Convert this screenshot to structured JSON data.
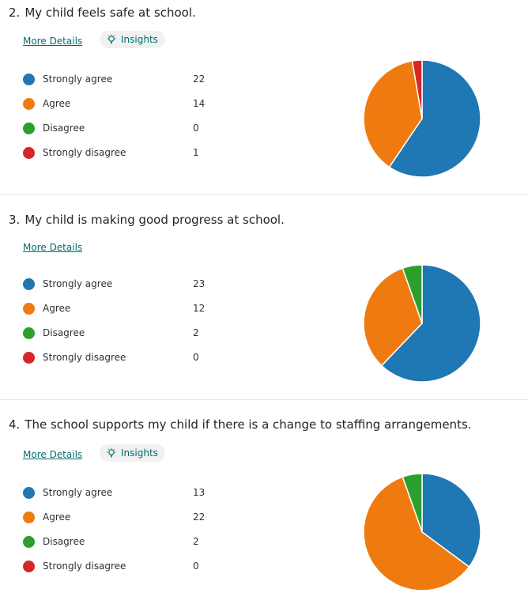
{
  "colors": {
    "strongly_agree": "#1f77b4",
    "agree": "#ef7b10",
    "disagree": "#2ca02c",
    "strongly_disagree": "#d62728"
  },
  "questions": [
    {
      "number": "2.",
      "title": "My child feels safe at school.",
      "more_details": "More Details",
      "insights": "Insights",
      "has_insights": true,
      "options": [
        {
          "label": "Strongly agree",
          "count": "22"
        },
        {
          "label": "Agree",
          "count": "14"
        },
        {
          "label": "Disagree",
          "count": "0"
        },
        {
          "label": "Strongly disagree",
          "count": "1"
        }
      ]
    },
    {
      "number": "3.",
      "title": "My child is making good progress at school.",
      "more_details": "More Details",
      "insights": "",
      "has_insights": false,
      "options": [
        {
          "label": "Strongly agree",
          "count": "23"
        },
        {
          "label": "Agree",
          "count": "12"
        },
        {
          "label": "Disagree",
          "count": "2"
        },
        {
          "label": "Strongly disagree",
          "count": "0"
        }
      ]
    },
    {
      "number": "4.",
      "title": "The school supports my child if there is a change to staffing arrangements.",
      "more_details": "More Details",
      "insights": "Insights",
      "has_insights": true,
      "options": [
        {
          "label": "Strongly agree",
          "count": "13"
        },
        {
          "label": "Agree",
          "count": "22"
        },
        {
          "label": "Disagree",
          "count": "2"
        },
        {
          "label": "Strongly disagree",
          "count": "0"
        }
      ]
    }
  ],
  "chart_data": [
    {
      "type": "pie",
      "categories": [
        "Strongly agree",
        "Agree",
        "Disagree",
        "Strongly disagree"
      ],
      "values": [
        22,
        14,
        0,
        1
      ],
      "legend": "left"
    },
    {
      "type": "pie",
      "categories": [
        "Strongly agree",
        "Agree",
        "Disagree",
        "Strongly disagree"
      ],
      "values": [
        23,
        12,
        2,
        0
      ],
      "legend": "left"
    },
    {
      "type": "pie",
      "categories": [
        "Strongly agree",
        "Agree",
        "Disagree",
        "Strongly disagree"
      ],
      "values": [
        13,
        22,
        2,
        0
      ],
      "legend": "left"
    }
  ]
}
